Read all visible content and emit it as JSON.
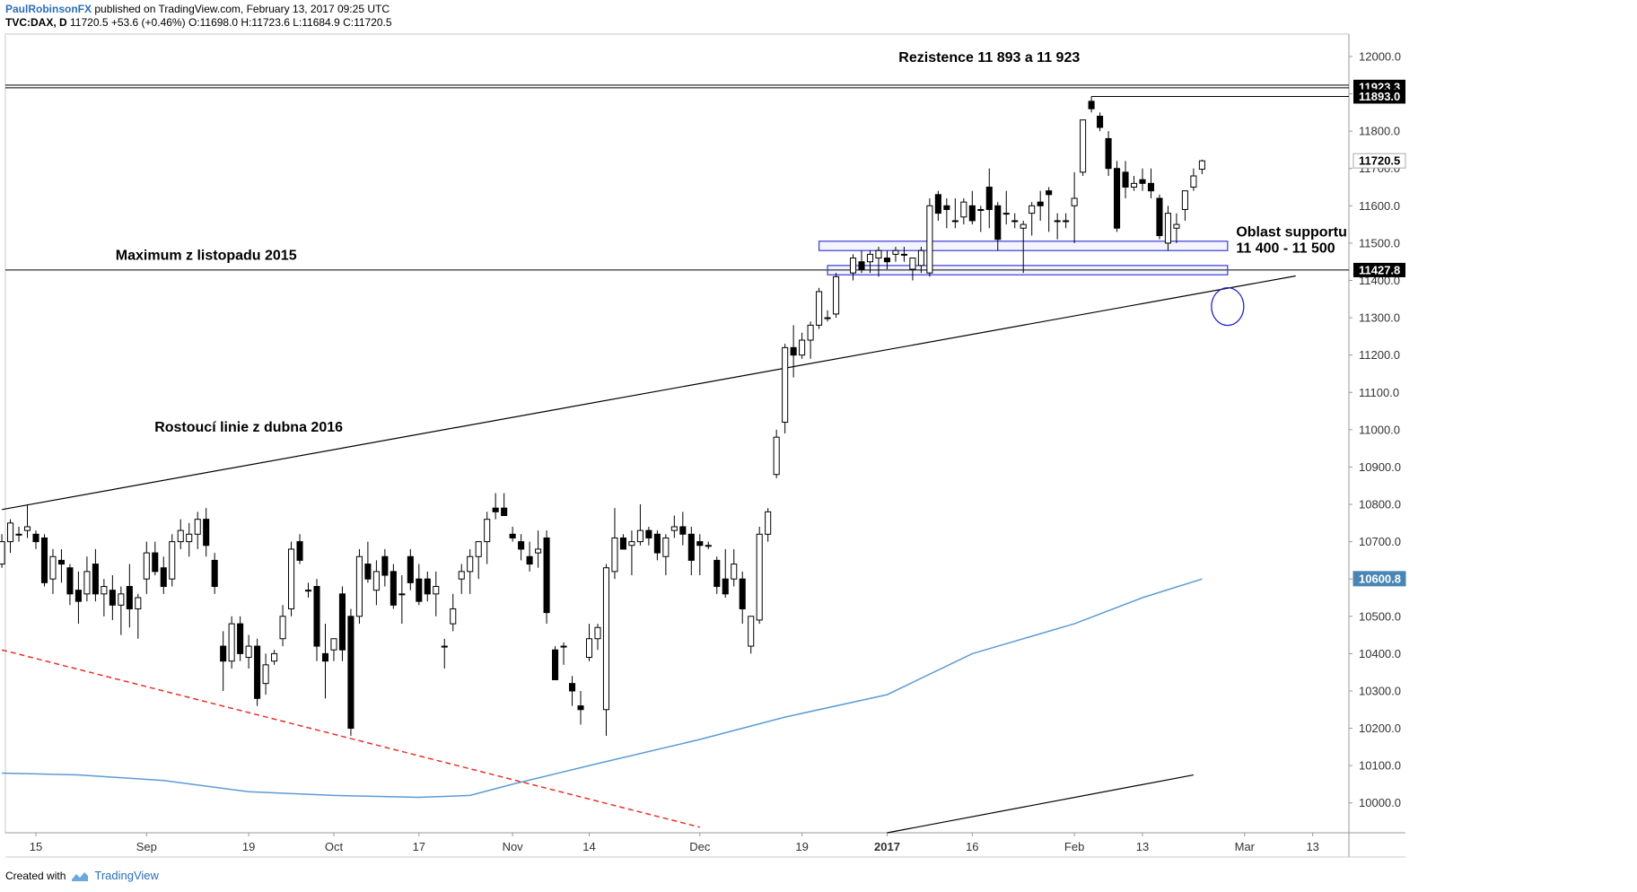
{
  "header": {
    "author": "PaulRobinsonFX",
    "published": "published on TradingView.com, February 13, 2017 09:25 UTC",
    "symbol_line": "TVC:DAX, D",
    "last": "11720.5",
    "change": "+53.6 (+0.46%)",
    "ohlc": "O:11698.0 H:11723.6 L:11684.9 C:11720.5"
  },
  "footer": {
    "created_with": "Created with",
    "brand": "TradingView"
  },
  "chart_data": {
    "type": "candlestick",
    "symbol": "TVC:DAX",
    "interval": "D",
    "ylim": [
      9920,
      12060
    ],
    "y_ticks": [
      10000,
      10100,
      10200,
      10300,
      10400,
      10500,
      10600,
      10700,
      10800,
      10900,
      11000,
      11100,
      11200,
      11300,
      11400,
      11500,
      11600,
      11700,
      11800,
      11900,
      12000
    ],
    "x_ticks": [
      {
        "label": "15",
        "date": "2016-08-15"
      },
      {
        "label": "Sep",
        "date": "2016-09-01"
      },
      {
        "label": "19",
        "date": "2016-09-19"
      },
      {
        "label": "Oct",
        "date": "2016-10-03"
      },
      {
        "label": "17",
        "date": "2016-10-17"
      },
      {
        "label": "Nov",
        "date": "2016-11-01"
      },
      {
        "label": "14",
        "date": "2016-11-14"
      },
      {
        "label": "Dec",
        "date": "2016-12-01"
      },
      {
        "label": "19",
        "date": "2016-12-19"
      },
      {
        "label": "2017",
        "date": "2017-01-02",
        "bold": true
      },
      {
        "label": "16",
        "date": "2017-01-16"
      },
      {
        "label": "Feb",
        "date": "2017-02-01"
      },
      {
        "label": "13",
        "date": "2017-02-13"
      },
      {
        "label": "Mar",
        "date": "2017-03-01"
      },
      {
        "label": "13",
        "date": "2017-03-13"
      }
    ],
    "candles": [
      [
        "2016-08-09",
        10640,
        10720,
        10630,
        10700
      ],
      [
        "2016-08-10",
        10700,
        10760,
        10670,
        10750
      ],
      [
        "2016-08-11",
        10720,
        10740,
        10700,
        10720
      ],
      [
        "2016-08-12",
        10730,
        10800,
        10710,
        10740
      ],
      [
        "2016-08-15",
        10720,
        10730,
        10680,
        10700
      ],
      [
        "2016-08-16",
        10710,
        10720,
        10580,
        10590
      ],
      [
        "2016-08-17",
        10600,
        10680,
        10560,
        10660
      ],
      [
        "2016-08-18",
        10650,
        10680,
        10590,
        10640
      ],
      [
        "2016-08-19",
        10630,
        10640,
        10530,
        10560
      ],
      [
        "2016-08-22",
        10570,
        10620,
        10480,
        10540
      ],
      [
        "2016-08-23",
        10560,
        10660,
        10540,
        10620
      ],
      [
        "2016-08-24",
        10640,
        10680,
        10540,
        10560
      ],
      [
        "2016-08-25",
        10560,
        10600,
        10500,
        10580
      ],
      [
        "2016-08-26",
        10570,
        10610,
        10490,
        10530
      ],
      [
        "2016-08-29",
        10530,
        10580,
        10450,
        10560
      ],
      [
        "2016-08-30",
        10580,
        10640,
        10470,
        10520
      ],
      [
        "2016-08-31",
        10520,
        10560,
        10440,
        10550
      ],
      [
        "2016-09-01",
        10600,
        10700,
        10560,
        10670
      ],
      [
        "2016-09-02",
        10670,
        10700,
        10610,
        10620
      ],
      [
        "2016-09-05",
        10630,
        10660,
        10560,
        10580
      ],
      [
        "2016-09-06",
        10600,
        10720,
        10580,
        10700
      ],
      [
        "2016-09-07",
        10700,
        10760,
        10680,
        10730
      ],
      [
        "2016-09-08",
        10700,
        10750,
        10660,
        10720
      ],
      [
        "2016-09-09",
        10720,
        10780,
        10680,
        10760
      ],
      [
        "2016-09-12",
        10760,
        10790,
        10660,
        10690
      ],
      [
        "2016-09-13",
        10650,
        10670,
        10560,
        10580
      ],
      [
        "2016-09-14",
        10420,
        10460,
        10300,
        10380
      ],
      [
        "2016-09-15",
        10380,
        10500,
        10360,
        10480
      ],
      [
        "2016-09-16",
        10480,
        10500,
        10380,
        10400
      ],
      [
        "2016-09-19",
        10390,
        10450,
        10360,
        10420
      ],
      [
        "2016-09-20",
        10420,
        10440,
        10260,
        10280
      ],
      [
        "2016-09-21",
        10320,
        10400,
        10290,
        10370
      ],
      [
        "2016-09-22",
        10380,
        10410,
        10370,
        10400
      ],
      [
        "2016-09-23",
        10440,
        10530,
        10420,
        10500
      ],
      [
        "2016-09-26",
        10520,
        10700,
        10500,
        10680
      ],
      [
        "2016-09-27",
        10700,
        10720,
        10640,
        10650
      ],
      [
        "2016-09-28",
        10570,
        10590,
        10550,
        10570
      ],
      [
        "2016-09-29",
        10580,
        10600,
        10380,
        10420
      ],
      [
        "2016-09-30",
        10400,
        10480,
        10280,
        10380
      ],
      [
        "2016-10-03",
        10410,
        10440,
        10380,
        10440
      ],
      [
        "2016-10-04",
        10560,
        10580,
        10380,
        10410
      ],
      [
        "2016-10-05",
        10500,
        10520,
        10180,
        10200
      ],
      [
        "2016-10-06",
        10500,
        10680,
        10480,
        10660
      ],
      [
        "2016-10-07",
        10640,
        10700,
        10590,
        10600
      ],
      [
        "2016-10-10",
        10570,
        10650,
        10530,
        10620
      ],
      [
        "2016-10-11",
        10660,
        10680,
        10580,
        10610
      ],
      [
        "2016-10-12",
        10620,
        10640,
        10520,
        10530
      ],
      [
        "2016-10-13",
        10560,
        10610,
        10480,
        10560
      ],
      [
        "2016-10-14",
        10660,
        10680,
        10570,
        10590
      ],
      [
        "2016-10-17",
        10600,
        10640,
        10530,
        10540
      ],
      [
        "2016-10-18",
        10600,
        10620,
        10540,
        10560
      ],
      [
        "2016-10-19",
        10560,
        10620,
        10500,
        10580
      ],
      [
        "2016-10-20",
        10420,
        10440,
        10360,
        10420
      ],
      [
        "2016-10-21",
        10480,
        10560,
        10460,
        10520
      ],
      [
        "2016-10-24",
        10600,
        10640,
        10560,
        10620
      ],
      [
        "2016-10-25",
        10620,
        10680,
        10560,
        10660
      ],
      [
        "2016-10-26",
        10660,
        10700,
        10600,
        10700
      ],
      [
        "2016-10-27",
        10700,
        10780,
        10640,
        10760
      ],
      [
        "2016-10-28",
        10790,
        10830,
        10760,
        10780
      ],
      [
        "2016-10-31",
        10790,
        10830,
        10770,
        10770
      ],
      [
        "2016-11-01",
        10720,
        10740,
        10700,
        10710
      ],
      [
        "2016-11-02",
        10700,
        10720,
        10650,
        10680
      ],
      [
        "2016-11-03",
        10660,
        10700,
        10620,
        10640
      ],
      [
        "2016-11-04",
        10670,
        10730,
        10630,
        10680
      ],
      [
        "2016-11-07",
        10710,
        10730,
        10480,
        10510
      ],
      [
        "2016-11-08",
        10410,
        10420,
        10330,
        10330
      ],
      [
        "2016-11-09",
        10420,
        10430,
        10370,
        10420
      ],
      [
        "2016-11-10",
        10320,
        10340,
        10260,
        10300
      ],
      [
        "2016-11-11",
        10260,
        10300,
        10210,
        10250
      ],
      [
        "2016-11-14",
        10390,
        10480,
        10380,
        10440
      ],
      [
        "2016-11-15",
        10440,
        10480,
        10410,
        10470
      ],
      [
        "2016-11-16",
        10250,
        10640,
        10180,
        10630
      ],
      [
        "2016-11-17",
        10620,
        10790,
        10600,
        10710
      ],
      [
        "2016-11-18",
        10710,
        10720,
        10680,
        10680
      ],
      [
        "2016-11-21",
        10690,
        10730,
        10610,
        10700
      ],
      [
        "2016-11-22",
        10700,
        10800,
        10690,
        10730
      ],
      [
        "2016-11-23",
        10730,
        10740,
        10690,
        10710
      ],
      [
        "2016-11-24",
        10720,
        10730,
        10650,
        10670
      ],
      [
        "2016-11-25",
        10660,
        10720,
        10610,
        10710
      ],
      [
        "2016-11-28",
        10730,
        10770,
        10710,
        10740
      ],
      [
        "2016-11-29",
        10740,
        10780,
        10690,
        10720
      ],
      [
        "2016-11-30",
        10720,
        10740,
        10610,
        10650
      ],
      [
        "2016-12-01",
        10700,
        10720,
        10610,
        10690
      ],
      [
        "2016-12-02",
        10690,
        10700,
        10680,
        10690
      ],
      [
        "2016-12-05",
        10650,
        10660,
        10560,
        10580
      ],
      [
        "2016-12-06",
        10600,
        10680,
        10550,
        10560
      ],
      [
        "2016-12-07",
        10600,
        10680,
        10580,
        10640
      ],
      [
        "2016-12-08",
        10600,
        10620,
        10480,
        10520
      ],
      [
        "2016-12-09",
        10420,
        10500,
        10400,
        10500
      ],
      [
        "2016-12-12",
        10490,
        10740,
        10480,
        10720
      ],
      [
        "2016-12-13",
        10720,
        10790,
        10700,
        10780
      ],
      [
        "2016-12-14",
        10880,
        11000,
        10870,
        10980
      ],
      [
        "2016-12-15",
        11020,
        11230,
        10990,
        11220
      ],
      [
        "2016-12-16",
        11220,
        11280,
        11140,
        11200
      ],
      [
        "2016-12-19",
        11200,
        11260,
        11190,
        11240
      ],
      [
        "2016-12-20",
        11240,
        11290,
        11190,
        11280
      ],
      [
        "2016-12-21",
        11280,
        11380,
        11270,
        11370
      ],
      [
        "2016-12-22",
        11300,
        11320,
        11290,
        11300
      ],
      [
        "2016-12-23",
        11310,
        11420,
        11300,
        11410
      ],
      [
        "2016-12-27",
        11420,
        11470,
        11400,
        11460
      ],
      [
        "2016-12-28",
        11450,
        11480,
        11420,
        11430
      ],
      [
        "2016-12-29",
        11450,
        11480,
        11420,
        11470
      ],
      [
        "2016-12-30",
        11460,
        11490,
        11410,
        11480
      ],
      [
        "2017-01-02",
        11460,
        11480,
        11430,
        11450
      ],
      [
        "2017-01-03",
        11470,
        11490,
        11450,
        11480
      ],
      [
        "2017-01-04",
        11470,
        11490,
        11450,
        11470
      ],
      [
        "2017-01-05",
        11430,
        11450,
        11400,
        11460
      ],
      [
        "2017-01-06",
        11440,
        11490,
        11420,
        11480
      ],
      [
        "2017-01-09",
        11420,
        11620,
        11410,
        11600
      ],
      [
        "2017-01-10",
        11630,
        11640,
        11560,
        11580
      ],
      [
        "2017-01-11",
        11600,
        11620,
        11540,
        11590
      ],
      [
        "2017-01-12",
        11560,
        11620,
        11540,
        11560
      ],
      [
        "2017-01-13",
        11570,
        11620,
        11550,
        11610
      ],
      [
        "2017-01-16",
        11600,
        11640,
        11550,
        11560
      ],
      [
        "2017-01-17",
        11590,
        11600,
        11530,
        11590
      ],
      [
        "2017-01-18",
        11650,
        11700,
        11540,
        11590
      ],
      [
        "2017-01-19",
        11600,
        11610,
        11480,
        11510
      ],
      [
        "2017-01-20",
        11580,
        11640,
        11550,
        11580
      ],
      [
        "2017-01-23",
        11560,
        11580,
        11540,
        11560
      ],
      [
        "2017-01-24",
        11540,
        11560,
        11420,
        11550
      ],
      [
        "2017-01-25",
        11580,
        11610,
        11520,
        11600
      ],
      [
        "2017-01-26",
        11610,
        11640,
        11560,
        11600
      ],
      [
        "2017-01-27",
        11640,
        11650,
        11530,
        11630
      ],
      [
        "2017-01-30",
        11560,
        11580,
        11510,
        11560
      ],
      [
        "2017-01-31",
        11560,
        11580,
        11540,
        11560
      ],
      [
        "2017-02-01",
        11600,
        11690,
        11500,
        11620
      ],
      [
        "2017-02-02",
        11690,
        11830,
        11680,
        11830
      ],
      [
        "2017-02-03",
        11880,
        11893,
        11850,
        11860
      ],
      [
        "2017-02-06",
        11840,
        11850,
        11800,
        11810
      ],
      [
        "2017-02-07",
        11780,
        11800,
        11680,
        11700
      ],
      [
        "2017-02-08",
        11700,
        11720,
        11530,
        11540
      ],
      [
        "2017-02-09",
        11690,
        11720,
        11620,
        11650
      ],
      [
        "2017-02-10",
        11650,
        11680,
        11640,
        11660
      ],
      [
        "2017-02-13",
        11670,
        11700,
        11640,
        11660
      ],
      [
        "2017-02-14",
        11660,
        11700,
        11620,
        11640
      ],
      [
        "2017-02-15",
        11620,
        11630,
        11510,
        11520
      ],
      [
        "2017-02-16",
        11500,
        11600,
        11480,
        11580
      ],
      [
        "2017-02-17",
        11540,
        11580,
        11500,
        11550
      ],
      [
        "2017-02-20",
        11590,
        11640,
        11560,
        11640
      ],
      [
        "2017-02-21",
        11650,
        11700,
        11640,
        11680
      ],
      [
        "2017-02-22",
        11698,
        11723.6,
        11684.9,
        11720.5
      ]
    ],
    "moving_average": {
      "color": "#5b9bd5",
      "points": [
        [
          "2016-08-09",
          10080
        ],
        [
          "2016-08-22",
          10075
        ],
        [
          "2016-09-05",
          10060
        ],
        [
          "2016-09-19",
          10030
        ],
        [
          "2016-10-03",
          10020
        ],
        [
          "2016-10-17",
          10015
        ],
        [
          "2016-10-25",
          10020
        ],
        [
          "2016-11-01",
          10050
        ],
        [
          "2016-11-14",
          10100
        ],
        [
          "2016-12-01",
          10170
        ],
        [
          "2016-12-15",
          10230
        ],
        [
          "2017-01-02",
          10290
        ],
        [
          "2017-01-16",
          10400
        ],
        [
          "2017-02-01",
          10480
        ],
        [
          "2017-02-13",
          10550
        ],
        [
          "2017-02-22",
          10600
        ]
      ]
    },
    "horizontal_lines": [
      {
        "value": 11923.3,
        "label": "11923.3",
        "style": "double"
      },
      {
        "value": 11893.0,
        "label": "11893.0",
        "style": "segment",
        "from": "2017-02-03"
      },
      {
        "value": 11427.8,
        "label": "11427.8",
        "style": "full"
      }
    ],
    "price_labels": [
      {
        "value": 11720.5,
        "label": "11720.5",
        "bg": "#ffffff",
        "fg": "#000000"
      },
      {
        "value": 10600.8,
        "label": "10600.8",
        "bg": "#4a86b5",
        "fg": "#ffffff"
      }
    ],
    "trendlines": [
      {
        "name": "rising",
        "from": [
          "2016-08-09",
          10786
        ],
        "to": [
          "2017-03-09",
          11412
        ],
        "color": "#000000",
        "dash": false
      },
      {
        "name": "falling",
        "from": [
          "2016-08-09",
          10410
        ],
        "to": [
          "2016-12-01",
          9935
        ],
        "color": "#e8312a",
        "dash": true
      },
      {
        "name": "lower",
        "from": [
          "2017-01-01",
          9920
        ],
        "to": [
          "2017-02-21",
          10075
        ],
        "color": "#000000",
        "dash": false
      }
    ],
    "support_boxes": [
      {
        "from": "2016-12-21",
        "to": "2017-02-27",
        "low": 11480,
        "high": 11505
      },
      {
        "from": "2016-12-22",
        "to": "2017-02-27",
        "low": 11415,
        "high": 11440
      }
    ],
    "ellipse": {
      "date": "2017-02-26",
      "value": 11330
    },
    "annotations": [
      {
        "text": "Rezistence 11 893 a 11 923",
        "date": "2017-01-18",
        "value": 11985
      },
      {
        "text": "Maximum z listopadu 2015",
        "date": "2016-09-12",
        "value": 11455
      },
      {
        "text": "Rostoucí linie z dubna 2016",
        "date": "2016-09-19",
        "value": 10995
      },
      {
        "text": "Oblast supportu",
        "date": "2017-02-28",
        "value": 11518
      },
      {
        "text": "11 400 - 11 500",
        "date": "2017-02-28",
        "value": 11475
      }
    ]
  }
}
